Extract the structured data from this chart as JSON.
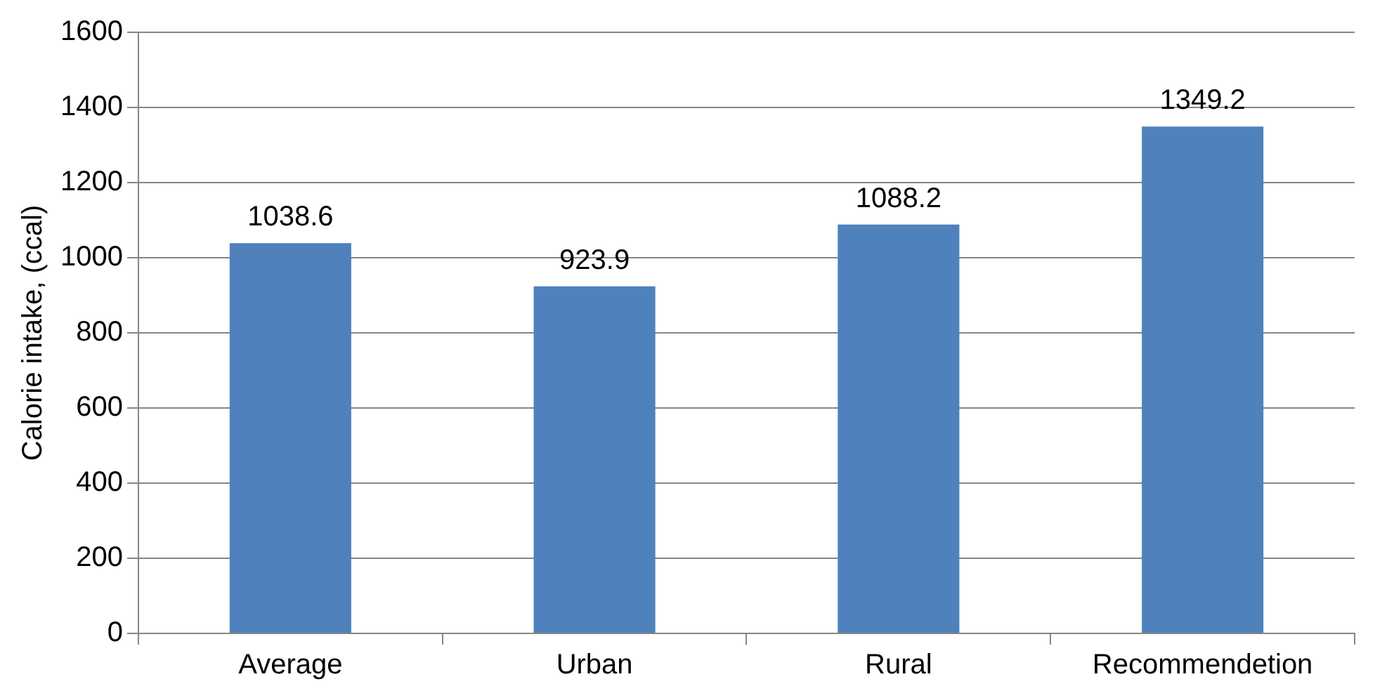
{
  "chart_data": {
    "type": "bar",
    "ylabel": "Calorie intake, (ccal)",
    "categories": [
      "Average",
      "Urban",
      "Rural",
      "Recommendetion"
    ],
    "values": [
      1038.6,
      923.9,
      1088.2,
      1349.2
    ],
    "color": "#4f81bd",
    "ylim": [
      0,
      1600
    ],
    "yticks": [
      0,
      200,
      400,
      600,
      800,
      1000,
      1200,
      1400,
      1600
    ],
    "grid": "y",
    "data_labels": true,
    "legend": false
  }
}
